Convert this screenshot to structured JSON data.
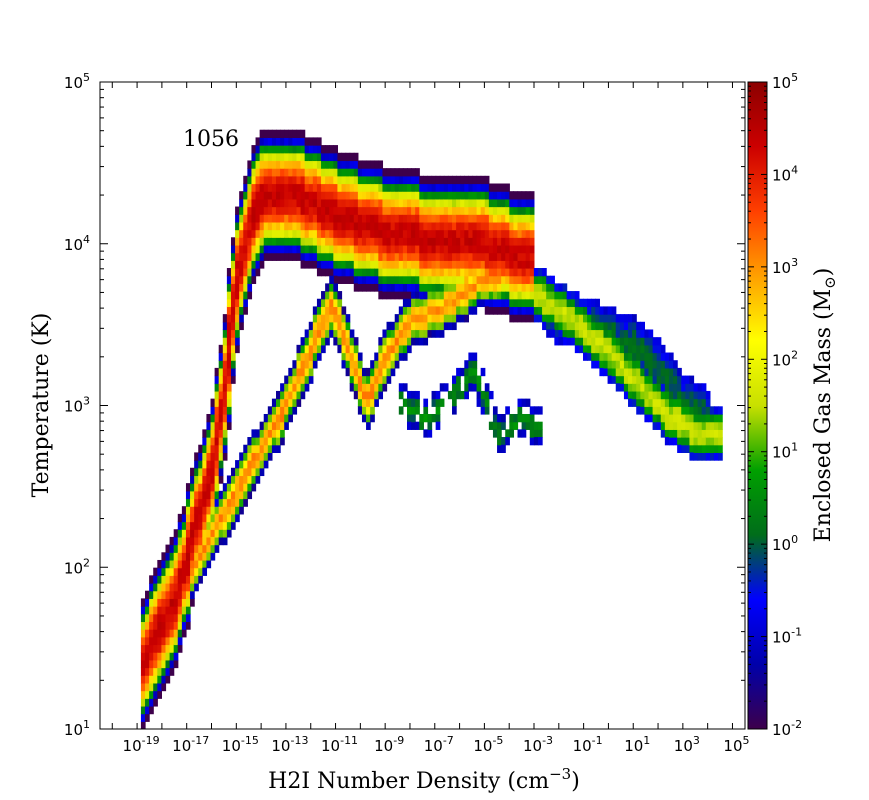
{
  "chart_data": {
    "type": "heatmap",
    "annotation": "1056",
    "xlabel": "H2I Number Density (cm",
    "xlabel_exponent": "−3",
    "xlabel_suffix": ")",
    "ylabel": "Temperature (K)",
    "colorbar_label": "Enclosed Gas Mass (M",
    "colorbar_symbol": "⊙",
    "colorbar_suffix": ")",
    "x_scale": "log",
    "y_scale": "log",
    "colorbar_scale": "log",
    "xlim": [
      3.2e-21,
      320000.0
    ],
    "ylim": [
      10,
      100000
    ],
    "colorbar_range": [
      0.01,
      100000
    ],
    "x_ticks": [
      {
        "base": "10",
        "exp": "-19",
        "value": 1e-19
      },
      {
        "base": "10",
        "exp": "-17",
        "value": 1e-17
      },
      {
        "base": "10",
        "exp": "-15",
        "value": 1e-15
      },
      {
        "base": "10",
        "exp": "-13",
        "value": 1e-13
      },
      {
        "base": "10",
        "exp": "-11",
        "value": 1e-11
      },
      {
        "base": "10",
        "exp": "-9",
        "value": 1e-09
      },
      {
        "base": "10",
        "exp": "-7",
        "value": 1e-07
      },
      {
        "base": "10",
        "exp": "-5",
        "value": 1e-05
      },
      {
        "base": "10",
        "exp": "-3",
        "value": 0.001
      },
      {
        "base": "10",
        "exp": "-1",
        "value": 0.1
      },
      {
        "base": "10",
        "exp": "1",
        "value": 10
      },
      {
        "base": "10",
        "exp": "3",
        "value": 1000
      },
      {
        "base": "10",
        "exp": "5",
        "value": 100000
      }
    ],
    "y_ticks": [
      {
        "base": "10",
        "exp": "1",
        "value": 10
      },
      {
        "base": "10",
        "exp": "2",
        "value": 100
      },
      {
        "base": "10",
        "exp": "3",
        "value": 1000
      },
      {
        "base": "10",
        "exp": "4",
        "value": 10000
      },
      {
        "base": "10",
        "exp": "5",
        "value": 100000
      }
    ],
    "colorbar_ticks": [
      {
        "base": "10",
        "exp": "-2",
        "value": 0.01
      },
      {
        "base": "10",
        "exp": "-1",
        "value": 0.1
      },
      {
        "base": "10",
        "exp": "0",
        "value": 1
      },
      {
        "base": "10",
        "exp": "1",
        "value": 10
      },
      {
        "base": "10",
        "exp": "2",
        "value": 100
      },
      {
        "base": "10",
        "exp": "3",
        "value": 1000
      },
      {
        "base": "10",
        "exp": "4",
        "value": 10000
      },
      {
        "base": "10",
        "exp": "5",
        "value": 100000
      }
    ],
    "colormap": [
      "#3d004b",
      "#0000aa",
      "#0000ff",
      "#006d1a",
      "#00a000",
      "#c8e000",
      "#ffff00",
      "#ffa000",
      "#ff4000",
      "#cc0000",
      "#8b0000"
    ],
    "grid": false,
    "regions": [
      {
        "name": "main-ridge",
        "log_mass_peak": 4.3,
        "points": [
          [
            -18.8,
            1.4
          ],
          [
            -17.5,
            1.8
          ],
          [
            -16.0,
            2.6
          ],
          [
            -15.0,
            3.8
          ],
          [
            -14.2,
            4.25
          ],
          [
            -13.0,
            4.3
          ],
          [
            -11.0,
            4.15
          ],
          [
            -9.0,
            4.05
          ],
          [
            -7.0,
            4.0
          ],
          [
            -5.0,
            3.97
          ],
          [
            -3.2,
            3.88
          ]
        ]
      },
      {
        "name": "lower-branch",
        "log_mass_peak": 3.0,
        "points": [
          [
            -18.8,
            1.4
          ],
          [
            -17.5,
            1.75
          ],
          [
            -16.0,
            2.2
          ],
          [
            -14.5,
            2.6
          ],
          [
            -13.0,
            3.0
          ],
          [
            -12.0,
            3.35
          ],
          [
            -11.2,
            3.6
          ],
          [
            -10.4,
            3.25
          ],
          [
            -9.8,
            3.0
          ],
          [
            -9.0,
            3.3
          ],
          [
            -8.0,
            3.5
          ],
          [
            -6.5,
            3.6
          ],
          [
            -5.2,
            3.75
          ],
          [
            -4.0,
            3.8
          ],
          [
            -3.2,
            3.88
          ]
        ]
      },
      {
        "name": "dense-tail",
        "log_mass_peak": 1.5,
        "points": [
          [
            -3.2,
            3.7
          ],
          [
            -1.5,
            3.5
          ],
          [
            0.0,
            3.3
          ],
          [
            1.5,
            3.05
          ],
          [
            2.5,
            2.9
          ],
          [
            3.5,
            2.8
          ],
          [
            4.5,
            2.82
          ]
        ]
      },
      {
        "name": "dense-tail-envelope",
        "log_mass_peak": 0.0,
        "points": [
          [
            -2.5,
            3.55
          ],
          [
            -0.5,
            3.45
          ],
          [
            1.0,
            3.35
          ],
          [
            2.0,
            3.2
          ],
          [
            3.0,
            3.0
          ],
          [
            4.0,
            2.9
          ]
        ]
      },
      {
        "name": "cold-scatter",
        "log_mass_peak": 0.5,
        "points": [
          [
            -8.5,
            3.0
          ],
          [
            -7.5,
            2.9
          ],
          [
            -6.5,
            3.0
          ],
          [
            -5.5,
            3.2
          ],
          [
            -4.5,
            2.8
          ],
          [
            -3.5,
            2.9
          ],
          [
            -2.8,
            2.85
          ]
        ]
      }
    ]
  }
}
